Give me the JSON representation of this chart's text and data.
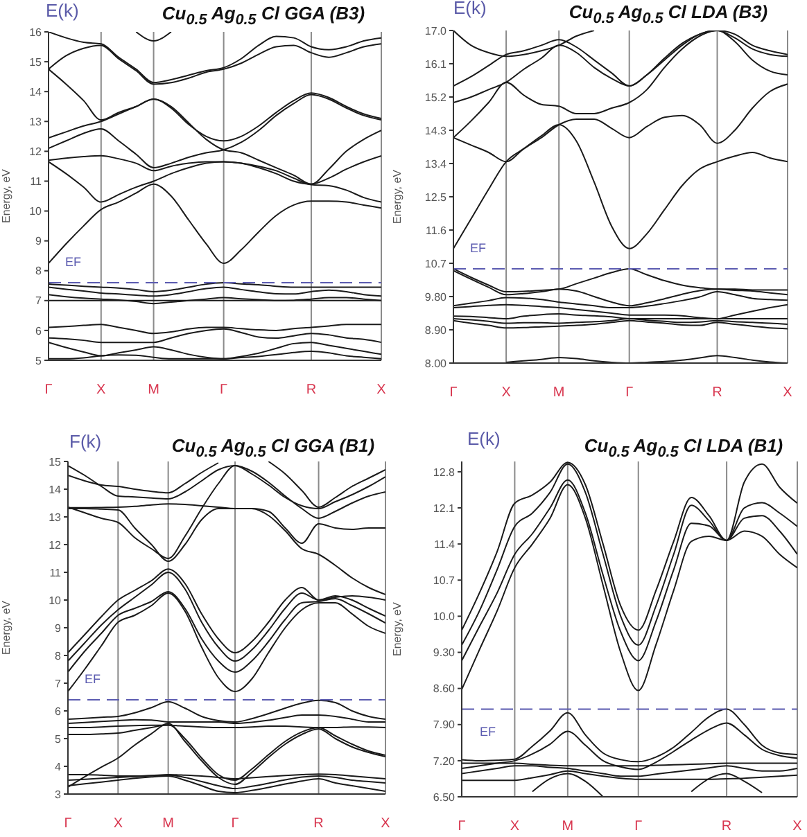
{
  "chart_data": [
    {
      "type": "line",
      "title": "Cu$_{0.5}$ Ag$_{0.5}$ Cl GGA (B3)",
      "ylabel": "Energy, eV",
      "annotations": [
        "E(k)"
      ],
      "categories": [
        "Γ",
        null,
        null,
        "X",
        null,
        null,
        "M",
        null,
        null,
        null,
        "Γ",
        null,
        null,
        null,
        null,
        "R",
        null,
        null,
        null,
        "X"
      ],
      "ylim": [
        5,
        16
      ],
      "yticks": [
        5,
        6,
        7,
        8,
        9,
        10,
        11,
        12,
        13,
        14,
        15,
        16
      ],
      "grid": "x",
      "ref_lines": [
        {
          "axis": "y",
          "value": 7.6,
          "label": "EF",
          "color": "#5b5bb0",
          "line_style": "dashed"
        }
      ],
      "series": [
        {
          "color": "#1a1a1a",
          "values": [
            8.25,
            8.9,
            9.5,
            10.05,
            10.3,
            10.6,
            10.9,
            10.5,
            9.7,
            8.9,
            8.25,
            8.7,
            9.3,
            9.85,
            10.2,
            10.33,
            10.33,
            10.3,
            10.2,
            10.1
          ]
        },
        {
          "color": "#1a1a1a",
          "values": [
            11.65,
            11.25,
            10.8,
            10.3,
            10.55,
            10.8,
            11.0,
            11.25,
            11.45,
            11.6,
            11.65,
            11.6,
            11.5,
            11.35,
            11.1,
            10.88,
            10.85,
            10.7,
            10.45,
            10.3
          ]
        },
        {
          "color": "#1a1a1a",
          "values": [
            11.7,
            11.77,
            11.82,
            11.85,
            11.75,
            11.6,
            11.35,
            11.5,
            11.6,
            11.65,
            11.65,
            11.6,
            11.45,
            11.25,
            11.0,
            10.9,
            11.1,
            11.4,
            11.65,
            11.85
          ]
        },
        {
          "color": "#1a1a1a",
          "values": [
            12.1,
            12.35,
            12.6,
            12.75,
            12.35,
            11.9,
            11.45,
            11.6,
            11.8,
            11.95,
            12.05,
            12.3,
            12.7,
            13.2,
            13.6,
            13.9,
            13.75,
            13.45,
            13.2,
            13.05
          ]
        },
        {
          "color": "#1a1a1a",
          "values": [
            12.45,
            12.65,
            12.85,
            13.0,
            13.25,
            13.5,
            13.75,
            13.45,
            12.9,
            12.5,
            12.35,
            12.5,
            12.85,
            13.3,
            13.7,
            13.95,
            13.8,
            13.5,
            13.25,
            13.1
          ]
        },
        {
          "color": "#1a1a1a",
          "values": [
            14.75,
            14.25,
            13.7,
            13.05,
            13.3,
            13.5,
            13.75,
            13.5,
            12.95,
            12.4,
            12.05,
            11.95,
            11.7,
            11.45,
            11.2,
            10.9,
            11.4,
            12.0,
            12.4,
            12.7
          ]
        },
        {
          "color": "#1a1a1a",
          "values": [
            14.75,
            15.2,
            15.45,
            15.55,
            15.1,
            14.7,
            14.25,
            14.3,
            14.45,
            14.65,
            14.75,
            14.95,
            15.25,
            15.5,
            15.55,
            15.3,
            15.15,
            15.3,
            15.5,
            15.6
          ]
        },
        {
          "color": "#1a1a1a",
          "values": [
            16.0,
            15.8,
            15.65,
            15.6,
            15.15,
            14.75,
            14.3,
            14.4,
            14.55,
            14.7,
            14.8,
            15.1,
            15.55,
            15.85,
            15.8,
            15.5,
            15.4,
            15.5,
            15.7,
            15.8
          ]
        },
        {
          "color": "#1a1a1a",
          "values": [
            null,
            null,
            null,
            null,
            null,
            16.0,
            15.7,
            16.0,
            null,
            null,
            null,
            null,
            null,
            null,
            null,
            null,
            null,
            null,
            null,
            null
          ]
        },
        {
          "color": "#1a1a1a",
          "values": [
            7.55,
            7.52,
            7.48,
            7.45,
            7.42,
            7.37,
            7.3,
            7.35,
            7.45,
            7.55,
            7.6,
            7.56,
            7.53,
            7.48,
            7.45,
            7.45,
            7.45,
            7.45,
            7.45,
            7.45
          ]
        },
        {
          "color": "#1a1a1a",
          "values": [
            7.45,
            7.38,
            7.32,
            7.25,
            7.22,
            7.18,
            7.15,
            7.2,
            7.3,
            7.4,
            7.45,
            7.37,
            7.29,
            7.23,
            7.22,
            7.3,
            7.35,
            7.3,
            7.2,
            7.15
          ]
        },
        {
          "color": "#1a1a1a",
          "values": [
            7.2,
            7.13,
            7.08,
            7.05,
            7.02,
            6.97,
            6.9,
            6.95,
            7.0,
            7.05,
            7.1,
            7.06,
            7.03,
            7.0,
            7.01,
            7.05,
            7.1,
            7.1,
            7.05,
            7.0
          ]
        },
        {
          "color": "#1a1a1a",
          "values": [
            7.0,
            7.0,
            7.0,
            7.0,
            7.0,
            7.0,
            7.0,
            7.0,
            7.0,
            7.0,
            7.0,
            7.0,
            7.0,
            7.0,
            7.0,
            7.0,
            7.0,
            7.0,
            7.0,
            7.0
          ]
        },
        {
          "color": "#1a1a1a",
          "values": [
            6.1,
            6.13,
            6.17,
            6.2,
            6.1,
            6.0,
            5.9,
            5.95,
            6.05,
            6.1,
            6.1,
            6.06,
            6.02,
            6.0,
            6.06,
            6.1,
            6.15,
            6.2,
            6.2,
            6.2
          ]
        },
        {
          "color": "#1a1a1a",
          "values": [
            5.75,
            5.72,
            5.67,
            5.6,
            5.6,
            5.6,
            5.6,
            5.75,
            5.9,
            6.0,
            6.05,
            5.93,
            5.78,
            5.74,
            5.82,
            5.9,
            5.85,
            5.75,
            5.7,
            5.6
          ]
        },
        {
          "color": "#1a1a1a",
          "values": [
            5.6,
            5.43,
            5.28,
            5.15,
            5.25,
            5.35,
            5.45,
            5.35,
            5.2,
            5.1,
            5.05,
            5.13,
            5.24,
            5.4,
            5.56,
            5.6,
            5.5,
            5.4,
            5.3,
            5.2
          ]
        },
        {
          "color": "#1a1a1a",
          "values": [
            5.05,
            5.05,
            5.08,
            5.15,
            5.18,
            5.17,
            5.1,
            5.05,
            5.05,
            5.05,
            5.05,
            5.09,
            5.13,
            5.19,
            5.26,
            5.3,
            5.25,
            5.15,
            5.1,
            5.05
          ]
        }
      ]
    },
    {
      "type": "line",
      "title": "Cu$_{0.5}$ Ag$_{0.5}$ Cl LDA (B3)",
      "ylabel": "Energy, eV",
      "annotations": [
        "E(k)"
      ],
      "categories": [
        "Γ",
        null,
        null,
        "X",
        null,
        null,
        "M",
        null,
        null,
        null,
        "Γ",
        null,
        null,
        null,
        null,
        "R",
        null,
        null,
        null,
        "X"
      ],
      "ylim": [
        8,
        17
      ],
      "yticks": [
        {
          "value": 8,
          "label": "8.00"
        },
        {
          "value": 8.9,
          "label": "8.90"
        },
        {
          "value": 9.8,
          "label": "9.80"
        },
        10.7,
        11.6,
        12.5,
        13.4,
        14.3,
        15.2,
        16.1,
        {
          "value": 17,
          "label": "17.0"
        }
      ],
      "grid": "x",
      "ref_lines": [
        {
          "axis": "y",
          "value": 10.55,
          "label": "EF",
          "color": "#5b5bb0",
          "line_style": "dashed"
        }
      ],
      "series": [
        {
          "color": "#1a1a1a",
          "values": [
            11.1,
            11.9,
            12.7,
            13.45,
            13.8,
            14.15,
            14.45,
            14.0,
            12.9,
            11.7,
            11.1,
            11.5,
            12.15,
            12.8,
            13.25,
            13.45,
            13.6,
            13.7,
            13.55,
            13.45
          ]
        },
        {
          "color": "#1a1a1a",
          "values": [
            14.1,
            13.9,
            13.7,
            13.45,
            13.8,
            14.1,
            14.45,
            14.6,
            14.6,
            14.35,
            14.1,
            14.4,
            14.65,
            14.7,
            14.45,
            13.95,
            14.3,
            14.9,
            15.35,
            15.55
          ]
        },
        {
          "color": "#1a1a1a",
          "values": [
            14.1,
            14.55,
            15.05,
            15.6,
            15.25,
            15.0,
            14.95,
            14.75,
            14.75,
            14.9,
            15.05,
            15.4,
            16.0,
            16.5,
            16.85,
            17.0,
            16.7,
            16.2,
            15.9,
            15.8
          ]
        },
        {
          "color": "#1a1a1a",
          "values": [
            15.05,
            15.2,
            15.4,
            15.6,
            15.95,
            16.25,
            16.6,
            16.4,
            16.0,
            15.7,
            15.5,
            15.8,
            16.25,
            16.65,
            16.9,
            17.0,
            16.8,
            16.5,
            16.35,
            16.3
          ]
        },
        {
          "color": "#1a1a1a",
          "values": [
            15.5,
            15.75,
            16.05,
            16.35,
            16.45,
            16.6,
            16.75,
            16.55,
            16.2,
            15.85,
            15.5,
            15.8,
            16.2,
            16.6,
            16.9,
            17.0,
            16.9,
            16.6,
            16.45,
            16.35
          ]
        },
        {
          "color": "#1a1a1a",
          "values": [
            17.0,
            16.6,
            16.4,
            16.3,
            16.35,
            16.45,
            16.6,
            16.85,
            17.0,
            null,
            null,
            null,
            null,
            null,
            null,
            null,
            null,
            null,
            null,
            null
          ]
        },
        {
          "color": "#1a1a1a",
          "values": [
            10.55,
            10.32,
            10.11,
            9.93,
            9.94,
            9.97,
            10.0,
            10.15,
            10.3,
            10.45,
            10.55,
            10.39,
            10.23,
            10.11,
            10.04,
            10.0,
            10.0,
            9.98,
            9.98,
            9.98
          ]
        },
        {
          "color": "#1a1a1a",
          "values": [
            10.5,
            10.27,
            10.05,
            9.85,
            9.88,
            9.93,
            10.0,
            9.95,
            9.8,
            9.65,
            9.55,
            9.63,
            9.74,
            9.86,
            9.96,
            10.0,
            9.97,
            9.95,
            9.9,
            9.85
          ]
        },
        {
          "color": "#1a1a1a",
          "values": [
            9.55,
            9.62,
            9.69,
            9.77,
            9.76,
            9.72,
            9.65,
            9.6,
            9.55,
            9.5,
            9.5,
            9.54,
            9.61,
            9.69,
            9.79,
            9.93,
            9.85,
            9.75,
            9.72,
            9.7
          ]
        },
        {
          "color": "#1a1a1a",
          "values": [
            9.5,
            9.53,
            9.56,
            9.58,
            9.56,
            9.53,
            9.5,
            9.45,
            9.4,
            9.35,
            9.3,
            9.3,
            9.3,
            9.28,
            9.23,
            9.2,
            9.3,
            9.4,
            9.5,
            9.58
          ]
        },
        {
          "color": "#1a1a1a",
          "values": [
            9.27,
            9.26,
            9.23,
            9.2,
            9.27,
            9.31,
            9.33,
            9.3,
            9.28,
            9.25,
            9.2,
            9.2,
            9.2,
            9.2,
            9.2,
            9.2,
            9.2,
            9.2,
            9.2,
            9.2
          ]
        },
        {
          "color": "#1a1a1a",
          "values": [
            9.2,
            9.17,
            9.13,
            9.08,
            9.09,
            9.09,
            9.08,
            9.1,
            9.12,
            9.15,
            9.2,
            9.16,
            9.13,
            9.1,
            9.11,
            9.15,
            9.12,
            9.1,
            9.08,
            9.05
          ]
        },
        {
          "color": "#1a1a1a",
          "values": [
            9.15,
            9.08,
            9.02,
            8.95,
            8.96,
            8.98,
            9.0,
            9.02,
            9.05,
            9.1,
            9.15,
            9.11,
            9.08,
            9.03,
            9.02,
            9.1,
            9.05,
            9.0,
            8.95,
            8.93
          ]
        },
        {
          "color": "#1a1a1a",
          "values": [
            null,
            null,
            null,
            8.02,
            8.06,
            8.1,
            8.15,
            8.12,
            8.06,
            8.02,
            8.0,
            8.02,
            8.04,
            8.08,
            8.14,
            8.2,
            8.15,
            8.08,
            8.03,
            8.0
          ]
        }
      ]
    },
    {
      "type": "line",
      "title": "Cu$_{0.5}$ Ag$_{0.5}$ Cl GGA (B1)",
      "ylabel": "Energy, eV",
      "annotations": [
        "F(k)"
      ],
      "categories": [
        "Γ",
        null,
        null,
        "X",
        null,
        null,
        "M",
        null,
        null,
        null,
        "Γ",
        null,
        null,
        null,
        null,
        "R",
        null,
        null,
        null,
        "X"
      ],
      "ylim": [
        3,
        15
      ],
      "yticks": [
        3,
        4,
        5,
        6,
        7,
        8,
        9,
        10,
        11,
        12,
        13,
        14,
        15
      ],
      "grid": "x",
      "ref_lines": [
        {
          "axis": "y",
          "value": 6.4,
          "label": "EF",
          "color": "#5b5bb0",
          "line_style": "dashed"
        }
      ],
      "series": [
        {
          "color": "#1a1a1a",
          "values": [
            6.7,
            7.5,
            8.35,
            9.2,
            9.45,
            9.8,
            10.25,
            9.6,
            8.3,
            7.2,
            6.7,
            7.15,
            8.1,
            9.0,
            9.65,
            9.9,
            9.9,
            9.5,
            9.05,
            8.8
          ]
        },
        {
          "color": "#1a1a1a",
          "values": [
            7.4,
            8.15,
            8.8,
            9.45,
            9.7,
            9.95,
            10.3,
            9.7,
            8.6,
            7.8,
            7.4,
            7.8,
            8.5,
            9.3,
            9.9,
            9.95,
            10.05,
            9.8,
            9.5,
            9.17
          ]
        },
        {
          "color": "#1a1a1a",
          "values": [
            7.8,
            8.45,
            9.1,
            9.65,
            10.1,
            10.55,
            11.0,
            10.4,
            9.2,
            8.3,
            7.8,
            8.2,
            8.9,
            9.7,
            10.25,
            10.0,
            10.15,
            10.0,
            9.7,
            9.42
          ]
        },
        {
          "color": "#1a1a1a",
          "values": [
            8.1,
            8.75,
            9.4,
            10.0,
            10.35,
            10.7,
            11.12,
            10.6,
            9.5,
            8.6,
            8.1,
            8.5,
            9.2,
            10.0,
            10.45,
            10.0,
            10.1,
            10.15,
            10.1,
            10.0
          ]
        },
        {
          "color": "#1a1a1a",
          "values": [
            13.3,
            13.3,
            13.28,
            13.25,
            12.6,
            12.0,
            11.4,
            12.0,
            12.9,
            13.3,
            13.3,
            13.3,
            13.05,
            12.5,
            11.85,
            11.65,
            11.25,
            10.8,
            10.45,
            10.2
          ]
        },
        {
          "color": "#1a1a1a",
          "values": [
            13.35,
            13.15,
            12.95,
            12.8,
            12.25,
            11.85,
            11.5,
            12.3,
            13.3,
            14.2,
            14.85,
            14.65,
            14.25,
            13.75,
            13.3,
            12.95,
            13.2,
            13.5,
            13.75,
            13.9
          ]
        },
        {
          "color": "#1a1a1a",
          "values": [
            13.33,
            13.33,
            13.34,
            13.35,
            13.38,
            13.43,
            13.47,
            13.45,
            13.4,
            13.35,
            13.3,
            13.3,
            13.2,
            12.6,
            12.05,
            12.75,
            12.6,
            12.55,
            12.6,
            12.6
          ]
        },
        {
          "color": "#1a1a1a",
          "values": [
            14.85,
            14.5,
            14.1,
            13.75,
            13.72,
            13.68,
            13.65,
            13.9,
            14.3,
            14.7,
            14.85,
            14.55,
            14.15,
            13.7,
            13.4,
            13.3,
            13.55,
            13.8,
            14.1,
            14.45
          ]
        },
        {
          "color": "#1a1a1a",
          "values": [
            14.5,
            14.3,
            14.15,
            14.1,
            14.0,
            13.92,
            13.87,
            14.2,
            14.6,
            14.95,
            null,
            null,
            15.0,
            14.55,
            13.95,
            13.35,
            13.7,
            14.1,
            14.4,
            14.7
          ]
        },
        {
          "color": "#1a1a1a",
          "values": [
            5.7,
            5.73,
            5.77,
            5.8,
            5.93,
            6.12,
            6.33,
            6.1,
            5.8,
            5.65,
            5.6,
            5.72,
            5.9,
            6.1,
            6.28,
            6.38,
            6.3,
            6.0,
            5.8,
            5.7
          ]
        },
        {
          "color": "#1a1a1a",
          "values": [
            5.55,
            5.58,
            5.62,
            5.65,
            5.68,
            5.67,
            5.6,
            5.6,
            5.6,
            5.6,
            5.55,
            5.59,
            5.66,
            5.76,
            5.85,
            5.85,
            5.8,
            5.7,
            5.6,
            5.6
          ]
        },
        {
          "color": "#1a1a1a",
          "values": [
            5.4,
            5.4,
            5.42,
            5.45,
            5.47,
            5.48,
            5.48,
            5.45,
            5.42,
            5.4,
            5.4,
            5.42,
            5.45,
            5.45,
            5.42,
            5.4,
            5.4,
            5.42,
            5.42,
            5.4
          ]
        },
        {
          "color": "#1a1a1a",
          "values": [
            5.15,
            5.15,
            5.17,
            5.2,
            5.3,
            5.4,
            5.5,
            5.0,
            4.3,
            3.7,
            3.5,
            3.9,
            4.42,
            4.9,
            5.24,
            5.4,
            5.1,
            4.8,
            4.55,
            4.4
          ]
        },
        {
          "color": "#1a1a1a",
          "values": [
            3.25,
            3.62,
            3.97,
            4.3,
            4.77,
            5.18,
            5.55,
            4.9,
            4.2,
            3.6,
            3.35,
            3.78,
            4.32,
            4.8,
            5.15,
            5.35,
            5.0,
            4.7,
            4.5,
            4.35
          ]
        },
        {
          "color": "#1a1a1a",
          "values": [
            3.7,
            3.7,
            3.68,
            3.65,
            3.65,
            3.67,
            3.7,
            3.68,
            3.65,
            3.6,
            3.55,
            3.59,
            3.63,
            3.67,
            3.7,
            3.72,
            3.7,
            3.65,
            3.6,
            3.55
          ]
        },
        {
          "color": "#1a1a1a",
          "values": [
            3.5,
            3.53,
            3.57,
            3.6,
            3.63,
            3.66,
            3.68,
            3.6,
            3.45,
            3.3,
            3.2,
            3.28,
            3.39,
            3.51,
            3.61,
            3.65,
            3.6,
            3.5,
            3.45,
            3.4
          ]
        },
        {
          "color": "#1a1a1a",
          "values": [
            3.3,
            3.37,
            3.43,
            3.5,
            3.57,
            3.62,
            3.65,
            3.5,
            3.3,
            3.1,
            3.05,
            3.13,
            3.24,
            3.36,
            3.47,
            3.55,
            3.4,
            3.3,
            3.2,
            3.1
          ]
        }
      ]
    },
    {
      "type": "line",
      "title": "Cu$_{0.5}$ Ag$_{0.5}$ Cl LDA (B1)",
      "ylabel": "Energy, eV",
      "annotations": [
        "E(k)"
      ],
      "categories": [
        "Γ",
        null,
        null,
        "X",
        null,
        null,
        "M",
        null,
        null,
        null,
        "Γ",
        null,
        null,
        null,
        null,
        "R",
        null,
        null,
        null,
        "X"
      ],
      "ylim": [
        6.5,
        13
      ],
      "yticks": [
        {
          "value": 6.5,
          "label": "6.50"
        },
        {
          "value": 7.2,
          "label": "7.20"
        },
        {
          "value": 7.9,
          "label": "7.90"
        },
        {
          "value": 8.6,
          "label": "8.60"
        },
        {
          "value": 9.3,
          "label": "9.30"
        },
        {
          "value": 10,
          "label": "10.0"
        },
        10.7,
        11.4,
        12.1,
        12.8
      ],
      "grid": "x",
      "ref_lines": [
        {
          "axis": "y",
          "value": 8.2,
          "label": "EF",
          "color": "#5b5bb0",
          "line_style": "dashed"
        }
      ],
      "series": [
        {
          "color": "#1a1a1a",
          "values": [
            8.58,
            9.35,
            10.1,
            10.94,
            11.4,
            11.9,
            12.55,
            11.9,
            10.6,
            9.3,
            8.56,
            9.45,
            10.5,
            11.45,
            11.55,
            11.47,
            11.65,
            11.55,
            11.2,
            10.94
          ]
        },
        {
          "color": "#1a1a1a",
          "values": [
            9.14,
            9.8,
            10.45,
            11.2,
            11.6,
            12.1,
            12.64,
            12.0,
            10.8,
            9.7,
            9.14,
            9.9,
            10.9,
            11.8,
            11.75,
            11.47,
            11.9,
            11.95,
            11.65,
            11.2
          ]
        },
        {
          "color": "#1a1a1a",
          "values": [
            9.44,
            10.1,
            10.9,
            11.74,
            12.0,
            12.4,
            12.95,
            12.4,
            11.2,
            10.0,
            9.44,
            10.2,
            11.2,
            12.15,
            11.85,
            11.47,
            12.1,
            12.2,
            12.0,
            11.74
          ]
        },
        {
          "color": "#1a1a1a",
          "values": [
            9.73,
            10.45,
            11.25,
            12.19,
            12.35,
            12.6,
            12.98,
            12.55,
            11.4,
            10.2,
            9.73,
            10.5,
            11.45,
            12.3,
            11.95,
            11.47,
            12.6,
            12.95,
            12.5,
            12.19
          ]
        },
        {
          "color": "#1a1a1a",
          "values": [
            7.22,
            7.2,
            7.21,
            7.23,
            7.48,
            7.78,
            8.13,
            7.7,
            7.35,
            7.22,
            7.18,
            7.27,
            7.46,
            7.75,
            8.05,
            8.2,
            7.9,
            7.5,
            7.35,
            7.32
          ]
        },
        {
          "color": "#1a1a1a",
          "values": [
            7.05,
            7.1,
            7.15,
            7.2,
            7.33,
            7.52,
            7.77,
            7.5,
            7.2,
            7.08,
            7.03,
            7.17,
            7.38,
            7.6,
            7.8,
            7.93,
            7.7,
            7.42,
            7.3,
            7.25
          ]
        },
        {
          "color": "#1a1a1a",
          "values": [
            7.15,
            7.15,
            7.15,
            7.15,
            7.13,
            7.11,
            7.1,
            7.1,
            7.1,
            7.1,
            7.1,
            7.11,
            7.12,
            7.13,
            7.14,
            7.15,
            7.15,
            7.15,
            7.15,
            7.15
          ]
        },
        {
          "color": "#1a1a1a",
          "values": [
            6.95,
            7.0,
            7.05,
            7.1,
            7.1,
            7.07,
            7.05,
            7.0,
            6.95,
            6.9,
            6.9,
            6.94,
            6.98,
            7.02,
            7.06,
            7.1,
            7.05,
            7.0,
            7.0,
            7.05
          ]
        },
        {
          "color": "#1a1a1a",
          "values": [
            6.82,
            6.82,
            6.82,
            6.82,
            6.87,
            6.93,
            7.0,
            6.95,
            6.9,
            6.86,
            6.84,
            6.84,
            6.84,
            6.84,
            6.84,
            6.85,
            6.86,
            6.88,
            6.9,
            6.92
          ]
        },
        {
          "color": "#1a1a1a",
          "values": [
            null,
            null,
            null,
            null,
            6.6,
            6.85,
            6.95,
            6.8,
            6.5,
            null,
            null,
            null,
            null,
            null,
            null,
            null,
            null,
            null,
            null,
            null
          ]
        },
        {
          "color": "#1a1a1a",
          "values": [
            null,
            null,
            null,
            null,
            null,
            null,
            null,
            null,
            null,
            null,
            null,
            null,
            null,
            6.6,
            6.85,
            6.95,
            6.8,
            6.58,
            null,
            null
          ]
        }
      ]
    }
  ]
}
